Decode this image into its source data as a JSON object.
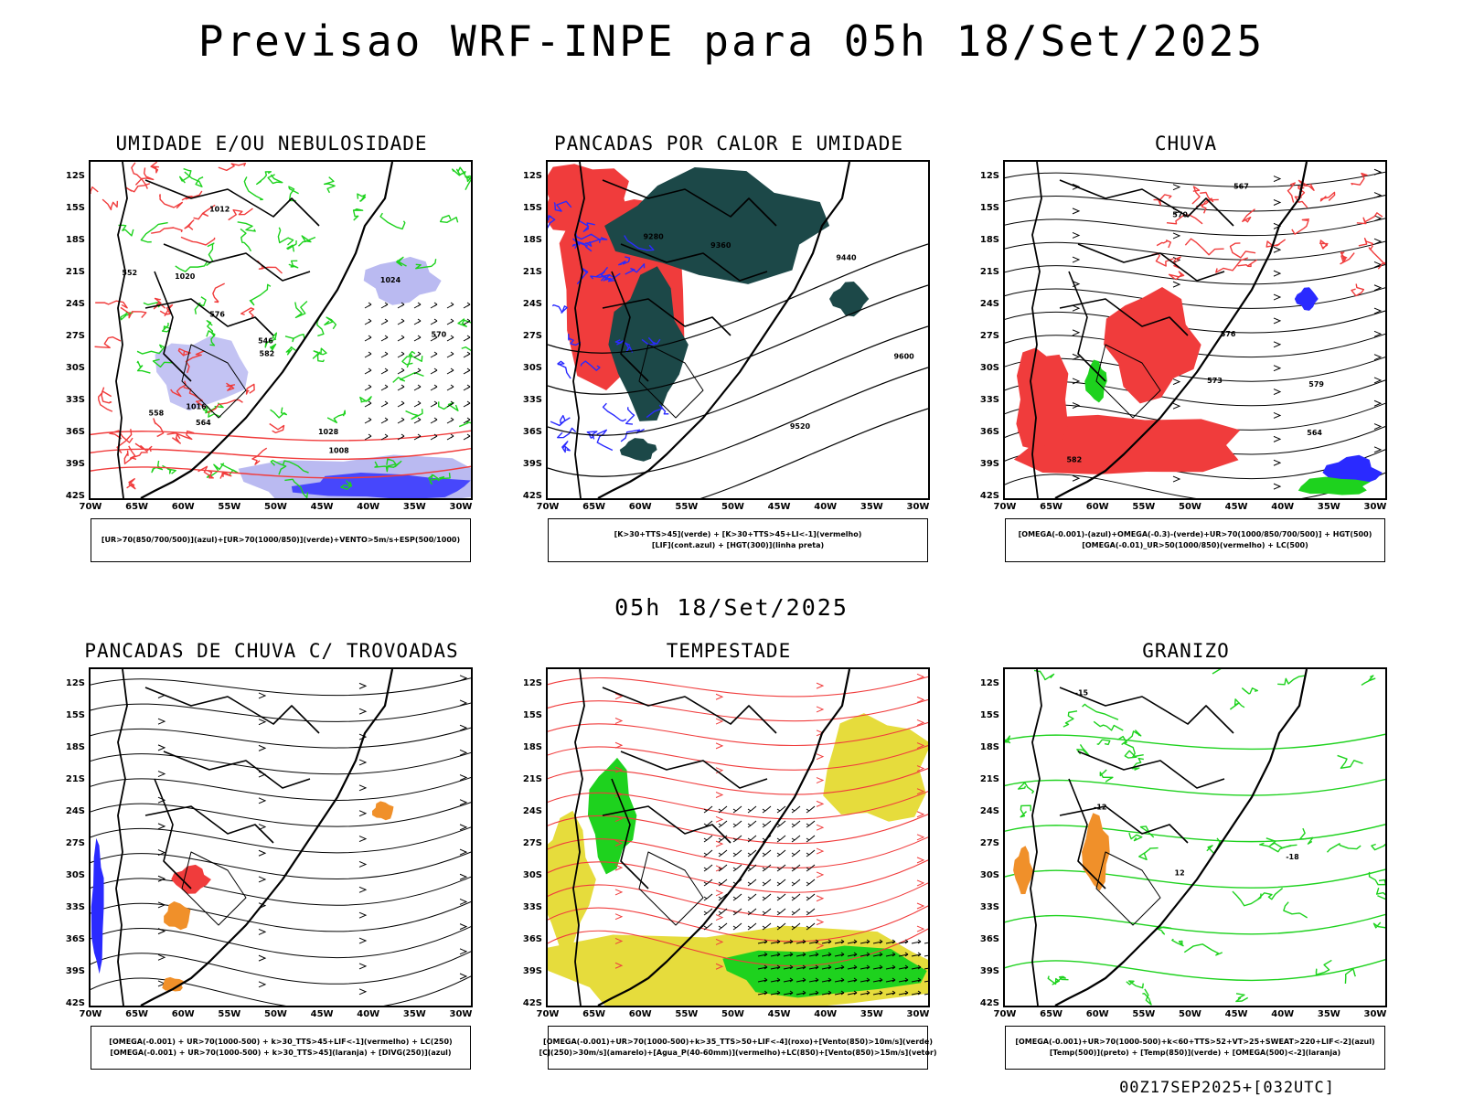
{
  "header": {
    "title": "Previsao WRF-INPE  para 05h 18/Set/2025"
  },
  "middle_title": "05h 18/Set/2025",
  "footer": "00Z17SEP2025+[032UTC]",
  "axes": {
    "lat_labels": [
      "12S",
      "15S",
      "18S",
      "21S",
      "24S",
      "27S",
      "30S",
      "33S",
      "36S",
      "39S",
      "42S"
    ],
    "lon_labels": [
      "70W",
      "65W",
      "60W",
      "55W",
      "50W",
      "45W",
      "40W",
      "35W",
      "30W"
    ]
  },
  "colors": {
    "red": "#f03c3c",
    "green": "#1ed21e",
    "blue": "#2a2aff",
    "lightblue": "#a9a9ee",
    "darkteal": "#1c4848",
    "yellow": "#e6dc3c",
    "orange": "#f0902a",
    "black": "#000000"
  },
  "panels": [
    {
      "id": "umidade",
      "title": "UMIDADE E/OU NEBULOSIDADE",
      "legend": [
        "[UR>70(850/700/500)](azul)+[UR>70(1000/850)](verde)+VENTO>5m/s+ESP(500/1000)"
      ],
      "contour_labels": [
        "1008",
        "1012",
        "1016",
        "1020",
        "1024",
        "1028",
        "570",
        "576",
        "582",
        "564",
        "558",
        "552",
        "546"
      ],
      "layers": [
        "red-contours",
        "green-contours",
        "blue-shading",
        "wind-vectors"
      ]
    },
    {
      "id": "pancadas_calor",
      "title": "PANCADAS POR CALOR E UMIDADE",
      "legend": [
        "[K>30+TTS>45](verde) + [K>30+TTS>45+LI<-1](vermelho)",
        "[LIF](cont.azul) + [HGT(300)](linha preta)"
      ],
      "contour_labels": [
        "9600",
        "9520",
        "9440",
        "9360",
        "9280"
      ],
      "layers": [
        "red-shading",
        "darkteal-shading",
        "blue-contours",
        "black-contours"
      ]
    },
    {
      "id": "chuva",
      "title": "CHUVA",
      "legend": [
        "[OMEGA(-0.001)-(azul)+OMEGA(-0.3)-(verde)+UR>70(1000/850/700/500)] + HGT(500)",
        "[OMEGA(-0.01)_UR>50(1000/850)(vermelho) + LC(500)"
      ],
      "contour_labels": [
        "582",
        "579",
        "576",
        "573",
        "570",
        "567",
        "564"
      ],
      "layers": [
        "red-shading",
        "blue-shading",
        "green-shading",
        "streamlines"
      ]
    },
    {
      "id": "trovoadas",
      "title": "PANCADAS DE CHUVA C/ TROVOADAS",
      "legend": [
        "[OMEGA(-0.001) + UR>70(1000-500) + k>30_TTS>45+LIF<-1](vermelho) + LC(250)",
        "[OMEGA(-0.001) + UR>70(1000-500) + k>30_TTS>45](laranja) + [DIVG(250)](azul)"
      ],
      "contour_labels": [],
      "layers": [
        "streamlines",
        "red-shading",
        "orange-shading",
        "blue-shading"
      ]
    },
    {
      "id": "tempestade",
      "title": "TEMPESTADE",
      "legend": [
        "[OMEGA(-0.001)+UR>70(1000-500)+k>35_TTS>50+LIF<-4](roxo)+[Vento(850)>10m/s](verde)",
        "[CJ(250)>30m/s](amarelo)+[Agua_P(40-60mm)](vermelho)+LC(850)+[Vento(850)>15m/s](vetor)"
      ],
      "contour_labels": [],
      "layers": [
        "yellow-shading",
        "green-shading",
        "red-streamlines",
        "wind-vectors"
      ]
    },
    {
      "id": "granizo",
      "title": "GRANIZO",
      "legend": [
        "[OMEGA(-0.001)+UR>70(1000-500)+k<60+TTS>52+VT>25+SWEAT>220+LIF<-2](azul)",
        "[Temp(500)](preto) + [Temp(850)](verde) + [OMEGA(500)<-2](laranja)"
      ],
      "contour_labels": [
        "12",
        "-12",
        "-15",
        "-18"
      ],
      "layers": [
        "green-contours",
        "black-contours",
        "orange-shading"
      ]
    }
  ]
}
